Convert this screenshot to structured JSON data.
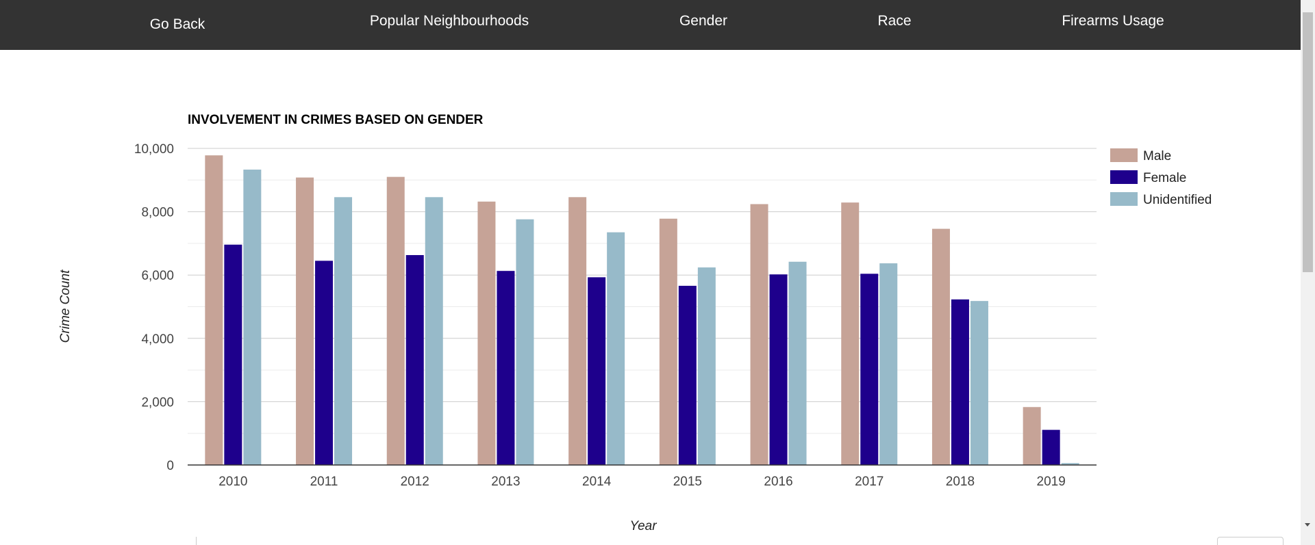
{
  "nav": {
    "items": [
      {
        "label": "Go Back",
        "name": "nav-go-back"
      },
      {
        "label": "Popular Neighbourhoods",
        "name": "nav-popular-neighbourhoods"
      },
      {
        "label": "Gender",
        "name": "nav-gender"
      },
      {
        "label": "Race",
        "name": "nav-race"
      },
      {
        "label": "Firearms Usage",
        "name": "nav-firearms-usage"
      }
    ]
  },
  "chart_data": {
    "type": "bar",
    "title": "INVOLVEMENT IN CRIMES BASED ON GENDER",
    "xlabel": "Year",
    "ylabel": "Crime Count",
    "categories": [
      "2010",
      "2011",
      "2012",
      "2013",
      "2014",
      "2015",
      "2016",
      "2017",
      "2018",
      "2019"
    ],
    "series": [
      {
        "name": "Male",
        "color": "#c6a397",
        "values": [
          9780,
          9080,
          9100,
          8320,
          8460,
          7780,
          8240,
          8290,
          7460,
          1830
        ]
      },
      {
        "name": "Female",
        "color": "#1e008c",
        "values": [
          6960,
          6450,
          6630,
          6130,
          5930,
          5660,
          6020,
          6040,
          5230,
          1110
        ]
      },
      {
        "name": "Unidentified",
        "color": "#97bac9",
        "values": [
          9330,
          8460,
          8460,
          7760,
          7350,
          6240,
          6420,
          6370,
          5180,
          60
        ]
      }
    ],
    "ylim": [
      0,
      10000
    ],
    "yticks": [
      "0",
      "2,000",
      "4,000",
      "6,000",
      "8,000",
      "10,000"
    ],
    "grid": true,
    "legend": "right"
  }
}
